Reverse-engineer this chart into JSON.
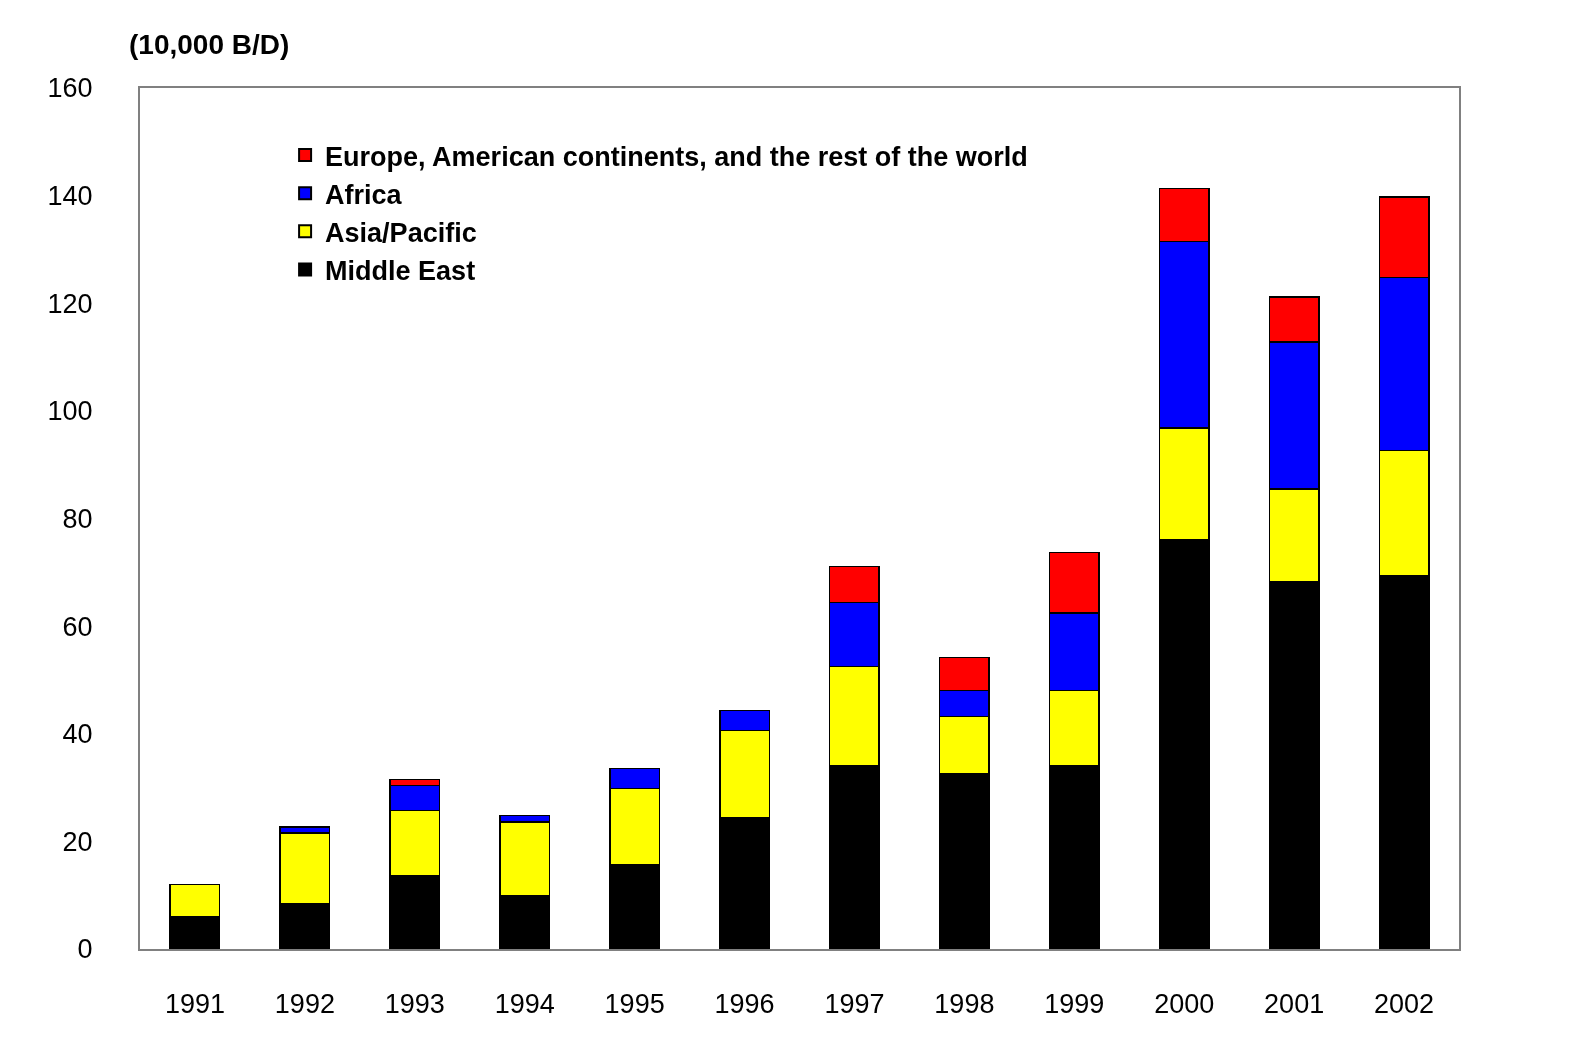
{
  "chart_data": {
    "type": "bar",
    "stacked": true,
    "ylabel": "(10,000 B/D)",
    "categories": [
      "1991",
      "1992",
      "1993",
      "1994",
      "1995",
      "1996",
      "1997",
      "1998",
      "1999",
      "2000",
      "2001",
      "2002"
    ],
    "series": [
      {
        "name": "Middle East",
        "color": "#000000",
        "values": [
          6.0,
          8.4,
          13.6,
          9.9,
          15.6,
          24.4,
          34.1,
          32.6,
          34.1,
          76.0,
          68.3,
          69.3
        ]
      },
      {
        "name": "Asia/Pacific",
        "color": "#ffff00",
        "values": [
          6.0,
          13.2,
          12.1,
          13.7,
          14.2,
          16.2,
          18.4,
          10.6,
          13.9,
          20.8,
          17.2,
          23.3
        ]
      },
      {
        "name": "Africa",
        "color": "#0000ff",
        "values": [
          null,
          1.1,
          4.7,
          1.2,
          3.7,
          3.7,
          11.9,
          4.8,
          14.4,
          34.7,
          27.3,
          32.2
        ]
      },
      {
        "name": "Europe, American continents, and the rest of the world",
        "color": "#ff0000",
        "values": [
          null,
          null,
          1.1,
          null,
          null,
          null,
          6.7,
          6.2,
          11.3,
          9.8,
          8.4,
          14.9
        ]
      }
    ],
    "ylim": [
      0,
      160
    ],
    "yticks": [
      0,
      20,
      40,
      60,
      80,
      100,
      120,
      140,
      160
    ],
    "legend": "top left"
  }
}
